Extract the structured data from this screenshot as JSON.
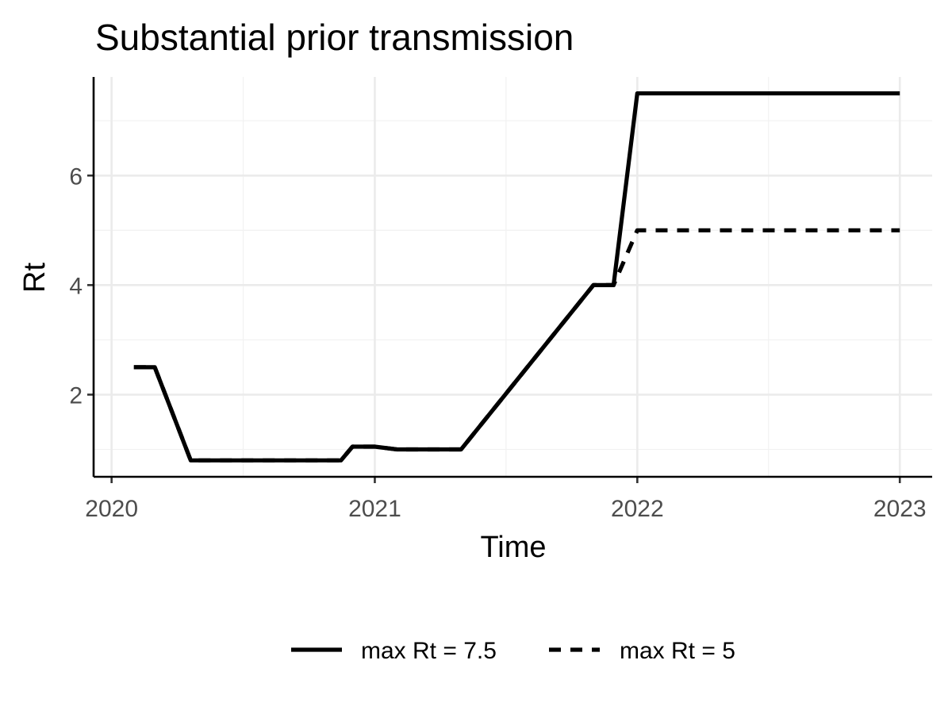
{
  "chart_data": {
    "type": "line",
    "title": "Substantial prior transmission",
    "xlabel": "Time",
    "ylabel": "Rt",
    "x_type": "date",
    "xlim": [
      "2019-12-07",
      "2023-02-15"
    ],
    "ylim": [
      0.5,
      7.8
    ],
    "x_ticks": [
      {
        "date": "2020-01-01",
        "label": "2020"
      },
      {
        "date": "2021-01-01",
        "label": "2021"
      },
      {
        "date": "2022-01-01",
        "label": "2022"
      },
      {
        "date": "2023-01-01",
        "label": "2023"
      }
    ],
    "y_ticks": [
      2,
      4,
      6
    ],
    "y_minor_ticks": [
      1,
      3,
      5,
      7
    ],
    "grid": true,
    "legend_position": "bottom",
    "series": [
      {
        "name": "max Rt = 7.5",
        "line_style": "solid",
        "color": "#000000",
        "x": [
          "2020-02-01",
          "2020-03-01",
          "2020-04-20",
          "2020-11-15",
          "2020-12-01",
          "2021-01-01",
          "2021-02-01",
          "2021-05-01",
          "2021-11-01",
          "2021-11-29",
          "2022-01-01",
          "2023-01-01"
        ],
        "y": [
          2.5,
          2.5,
          0.8,
          0.8,
          1.05,
          1.05,
          1.0,
          1.0,
          4.0,
          4.0,
          7.5,
          7.5
        ]
      },
      {
        "name": "max Rt = 5",
        "line_style": "dashed",
        "color": "#000000",
        "x": [
          "2020-02-01",
          "2020-03-01",
          "2020-04-20",
          "2020-11-15",
          "2020-12-01",
          "2021-01-01",
          "2021-02-01",
          "2021-05-01",
          "2021-11-01",
          "2021-11-29",
          "2022-01-01",
          "2023-01-01"
        ],
        "y": [
          2.5,
          2.5,
          0.8,
          0.8,
          1.05,
          1.05,
          1.0,
          1.0,
          4.0,
          4.0,
          5.0,
          5.0
        ]
      }
    ]
  }
}
